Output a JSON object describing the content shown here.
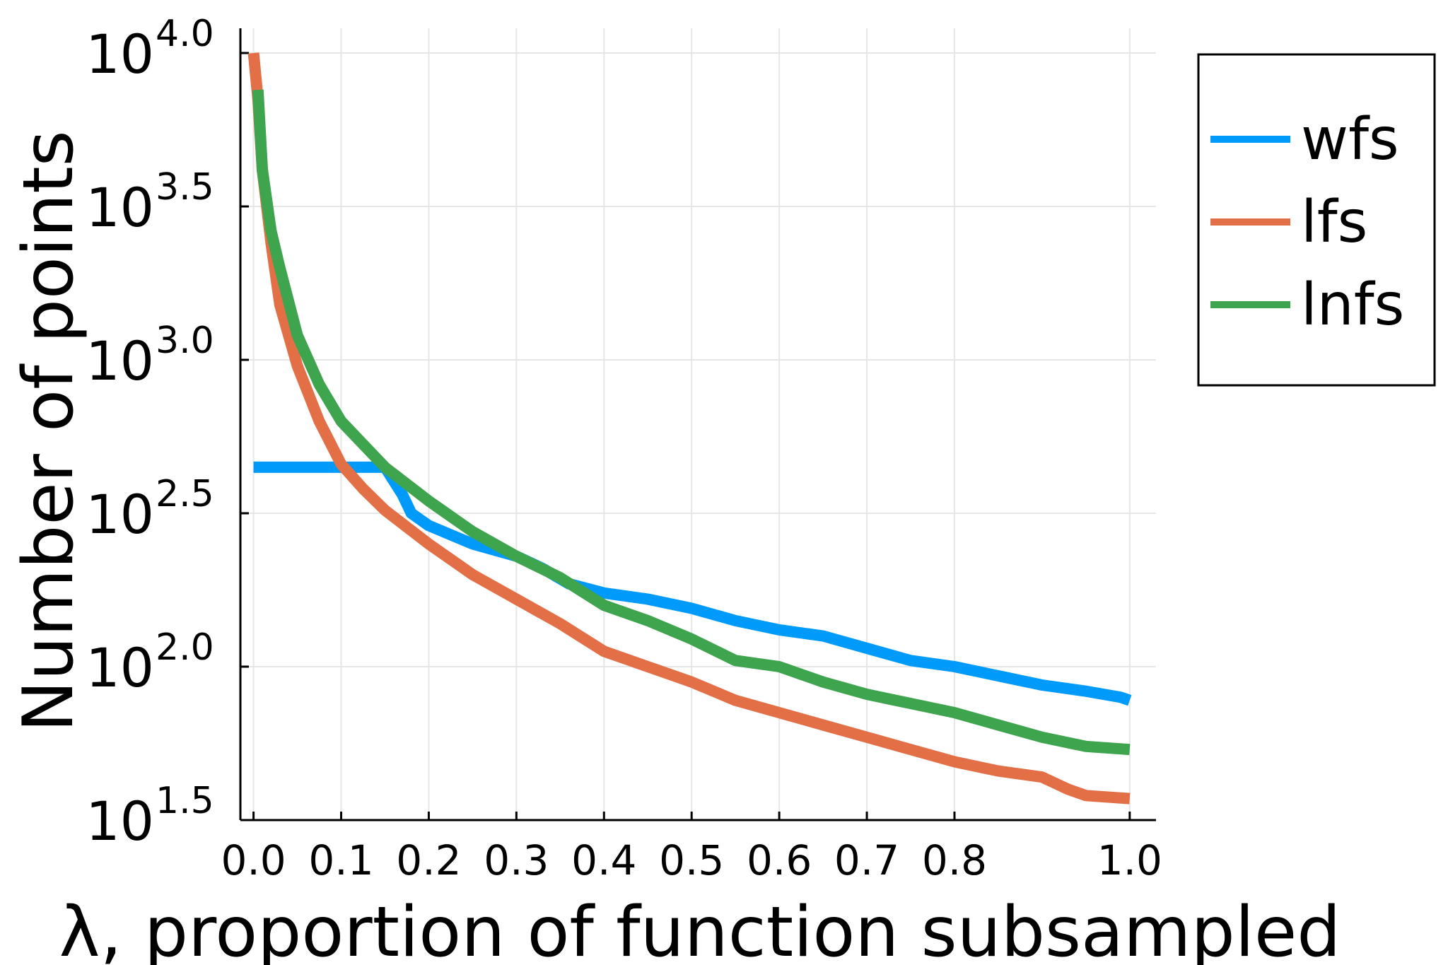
{
  "chart_data": {
    "type": "line",
    "title": "",
    "xlabel": "λ, proportion of function subsampled",
    "ylabel": "Number of points",
    "y_scale": "log10",
    "xlim": [
      -0.015,
      1.03
    ],
    "ylim": [
      1.5,
      4.0
    ],
    "xticks": [
      0.0,
      0.1,
      0.2,
      0.3,
      0.4,
      0.5,
      0.6,
      0.7,
      0.8,
      1.0
    ],
    "xtick_labels": [
      "0.0",
      "0.1",
      "0.2",
      "0.3",
      "0.4",
      "0.5",
      "0.6",
      "0.7",
      "0.8",
      "1.0"
    ],
    "yticks": [
      1.5,
      2.0,
      2.5,
      3.0,
      3.5,
      4.0
    ],
    "ytick_base": "10",
    "ytick_exponents": [
      "1.5",
      "2.0",
      "2.5",
      "3.0",
      "3.5",
      "4.0"
    ],
    "grid": true,
    "legend_position": "top-right",
    "series": [
      {
        "name": "wfs",
        "color": "#009AFA",
        "x": [
          0.0,
          0.05,
          0.1,
          0.15,
          0.17,
          0.18,
          0.2,
          0.25,
          0.3,
          0.33,
          0.36,
          0.4,
          0.45,
          0.5,
          0.55,
          0.6,
          0.65,
          0.7,
          0.75,
          0.8,
          0.85,
          0.9,
          0.95,
          0.99,
          1.0
        ],
        "log10_y": [
          2.65,
          2.65,
          2.65,
          2.65,
          2.56,
          2.5,
          2.46,
          2.4,
          2.36,
          2.32,
          2.27,
          2.24,
          2.22,
          2.19,
          2.15,
          2.12,
          2.1,
          2.06,
          2.02,
          2.0,
          1.97,
          1.94,
          1.92,
          1.9,
          1.89
        ]
      },
      {
        "name": "lfs",
        "color": "#E26F46",
        "x": [
          0.0,
          0.005,
          0.01,
          0.02,
          0.03,
          0.05,
          0.075,
          0.1,
          0.125,
          0.15,
          0.2,
          0.25,
          0.3,
          0.35,
          0.4,
          0.45,
          0.5,
          0.55,
          0.6,
          0.65,
          0.7,
          0.75,
          0.8,
          0.85,
          0.9,
          0.93,
          0.95,
          1.0
        ],
        "log10_y": [
          4.0,
          3.85,
          3.62,
          3.38,
          3.18,
          2.98,
          2.8,
          2.66,
          2.58,
          2.51,
          2.4,
          2.3,
          2.22,
          2.14,
          2.05,
          2.0,
          1.95,
          1.89,
          1.85,
          1.81,
          1.77,
          1.73,
          1.69,
          1.66,
          1.64,
          1.6,
          1.58,
          1.57
        ]
      },
      {
        "name": "lnfs",
        "color": "#3EA44E",
        "x": [
          0.005,
          0.01,
          0.02,
          0.03,
          0.05,
          0.075,
          0.1,
          0.15,
          0.2,
          0.25,
          0.3,
          0.35,
          0.4,
          0.45,
          0.5,
          0.55,
          0.6,
          0.65,
          0.7,
          0.75,
          0.8,
          0.85,
          0.9,
          0.95,
          1.0
        ],
        "log10_y": [
          3.88,
          3.62,
          3.42,
          3.3,
          3.08,
          2.92,
          2.8,
          2.65,
          2.54,
          2.44,
          2.36,
          2.29,
          2.2,
          2.15,
          2.09,
          2.02,
          2.0,
          1.95,
          1.91,
          1.88,
          1.85,
          1.81,
          1.77,
          1.74,
          1.73
        ]
      }
    ]
  }
}
